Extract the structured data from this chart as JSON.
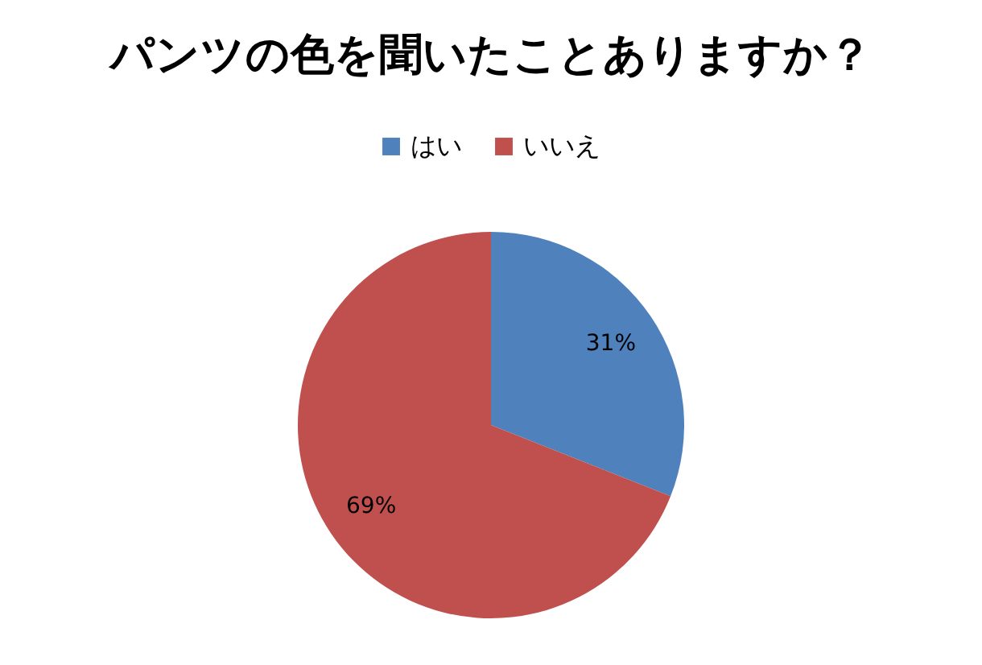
{
  "chart_data": {
    "type": "pie",
    "title": "パンツの色を聞いたことありますか？",
    "categories": [
      "はい",
      "いいえ"
    ],
    "values": [
      31,
      69
    ],
    "colors": [
      "#4f81bd",
      "#c0504d"
    ],
    "value_labels": [
      "31%",
      "69%"
    ],
    "legend": "top"
  }
}
